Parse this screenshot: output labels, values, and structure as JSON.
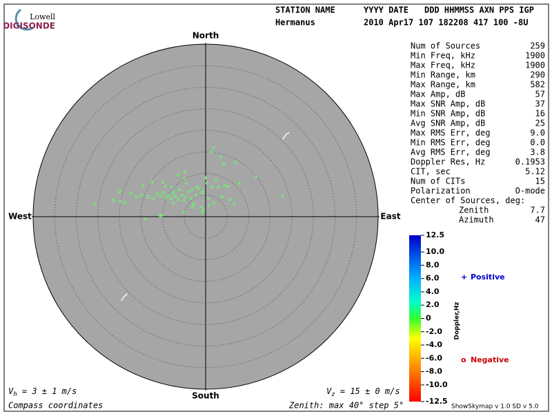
{
  "logo": {
    "top": "Lowell",
    "bottom": "DIGISONDE"
  },
  "header": {
    "labels": [
      "STATION NAME",
      "YYYY DATE",
      "DDD HHMMSS AXN PPS IGP"
    ],
    "values": [
      "Hermanus",
      "2010 Apr17 107 182208 417 100 -8U"
    ]
  },
  "compass": {
    "north": "North",
    "south": "South",
    "east": "East",
    "west": "West"
  },
  "stats": {
    "rows": [
      [
        "Num of Sources",
        "259"
      ],
      [
        "Min Freq, kHz",
        "1900"
      ],
      [
        "Max Freq, kHz",
        "1900"
      ],
      [
        "Min Range, km",
        "290"
      ],
      [
        "Max Range, km",
        "582"
      ],
      [
        "Max Amp, dB",
        "57"
      ],
      [
        "Max SNR Amp, dB",
        "37"
      ],
      [
        "Min SNR Amp, dB",
        "16"
      ],
      [
        "Avg SNR Amp, dB",
        "25"
      ],
      [
        "Max RMS Err, deg",
        "9.0"
      ],
      [
        "Min RMS Err, deg",
        "0.0"
      ],
      [
        "Avg RMS Err, deg",
        "3.8"
      ],
      [
        "Doppler Res, Hz",
        "0.1953"
      ],
      [
        "CIT, sec",
        "5.12"
      ],
      [
        "Num of CITs",
        "15"
      ],
      [
        "Polarization",
        "O-mode"
      ]
    ],
    "center_title": "Center of Sources, deg:",
    "center_rows": [
      [
        "Zenith",
        "7.7"
      ],
      [
        "Azimuth",
        "47"
      ]
    ]
  },
  "chart_data": {
    "type": "skymap",
    "zenith_max": 40,
    "zenith_step": 5,
    "series": [
      {
        "name": "Positive",
        "marker": "+",
        "color": "#66ff66",
        "legend_color": "#0000cc",
        "east": [
          -14.1,
          -5.0,
          -6.4,
          -4.6,
          -2.2,
          -0.6,
          0.6,
          0.8,
          -1.0,
          1.9,
          7.8,
          11.7,
          17.8,
          5.2,
          -9.3,
          -7.5,
          -3.2,
          0.0,
          -0.8
        ],
        "north": [
          -0.5,
          8.8,
          9.6,
          7.7,
          6.9,
          5.8,
          4.2,
          2.6,
          2.2,
          3.2,
          7.7,
          9.3,
          4.8,
          7.0,
          7.0,
          3.2,
          6.2,
          9.0,
          1.0
        ]
      },
      {
        "name": "Negative",
        "marker": "o",
        "color": "#66ff66",
        "legend_color": "#cc0000",
        "east": [
          -25.7,
          -21.4,
          -19.7,
          -18.6,
          -17.4,
          -14.9,
          -13.4,
          -12.2,
          -11.2,
          -10.4,
          -9.8,
          -9.1,
          -8.5,
          -8.0,
          -7.5,
          -7.0,
          -6.4,
          -6.0,
          -5.4,
          -5.0,
          -4.6,
          -4.0,
          -3.4,
          -2.7,
          -2.2,
          -1.6,
          -0.8,
          0.3,
          1.4,
          2.4,
          3.0,
          3.8,
          4.5,
          4.2,
          5.6,
          6.6,
          1.8,
          1.3,
          3.5,
          7.0,
          -4.8,
          -9.9,
          -14.6,
          -10.6,
          -10.2,
          -5.0,
          -3.0,
          -0.5,
          -12.5,
          -16.0,
          -20.0,
          -7.8
        ],
        "north": [
          2.9,
          3.8,
          3.5,
          3.2,
          5.4,
          5.0,
          4.6,
          4.2,
          5.3,
          4.8,
          5.6,
          4.5,
          5.0,
          4.2,
          5.6,
          4.8,
          4.0,
          6.2,
          5.0,
          3.7,
          4.6,
          5.8,
          4.2,
          3.0,
          4.9,
          6.6,
          5.4,
          7.8,
          6.9,
          8.4,
          6.9,
          4.6,
          7.2,
          12.1,
          3.9,
          2.9,
          16.0,
          15.0,
          13.8,
          12.6,
          10.3,
          8.0,
          7.2,
          0.3,
          0.3,
          1.0,
          2.2,
          1.5,
          8.0,
          4.6,
          5.8,
          6.9
        ]
      }
    ]
  },
  "colorbar": {
    "label": "Doppler,Hz",
    "ylim": [
      -12.5,
      12.5
    ],
    "yticks": [
      12.5,
      {
        "value": 10,
        "label": "10.0"
      },
      {
        "value": 8,
        "label": "8.0"
      },
      {
        "value": 6,
        "label": "6.0"
      },
      {
        "value": 4,
        "label": "4.0"
      },
      {
        "value": 2,
        "label": "2.0"
      },
      0,
      {
        "value": -2,
        "label": "-2.0"
      },
      {
        "value": -4,
        "label": "-4.0"
      },
      {
        "value": -6,
        "label": "-6.0"
      },
      {
        "value": -8,
        "label": "-8.0"
      },
      {
        "value": -10,
        "label": "-10.0"
      },
      -12.5
    ]
  },
  "footer": {
    "vh": {
      "symbol": "V",
      "sub": "h",
      "text": " = 3 ± 1 m/s"
    },
    "vz": {
      "symbol": "V",
      "sub": "z",
      "text": " = 15 ± 0 m/s"
    },
    "coords": "Compass coordinates",
    "zenith": "Zenith: max 40°  step 5°",
    "version": "ShowSkymap v 1.0   SD v 5.0"
  }
}
